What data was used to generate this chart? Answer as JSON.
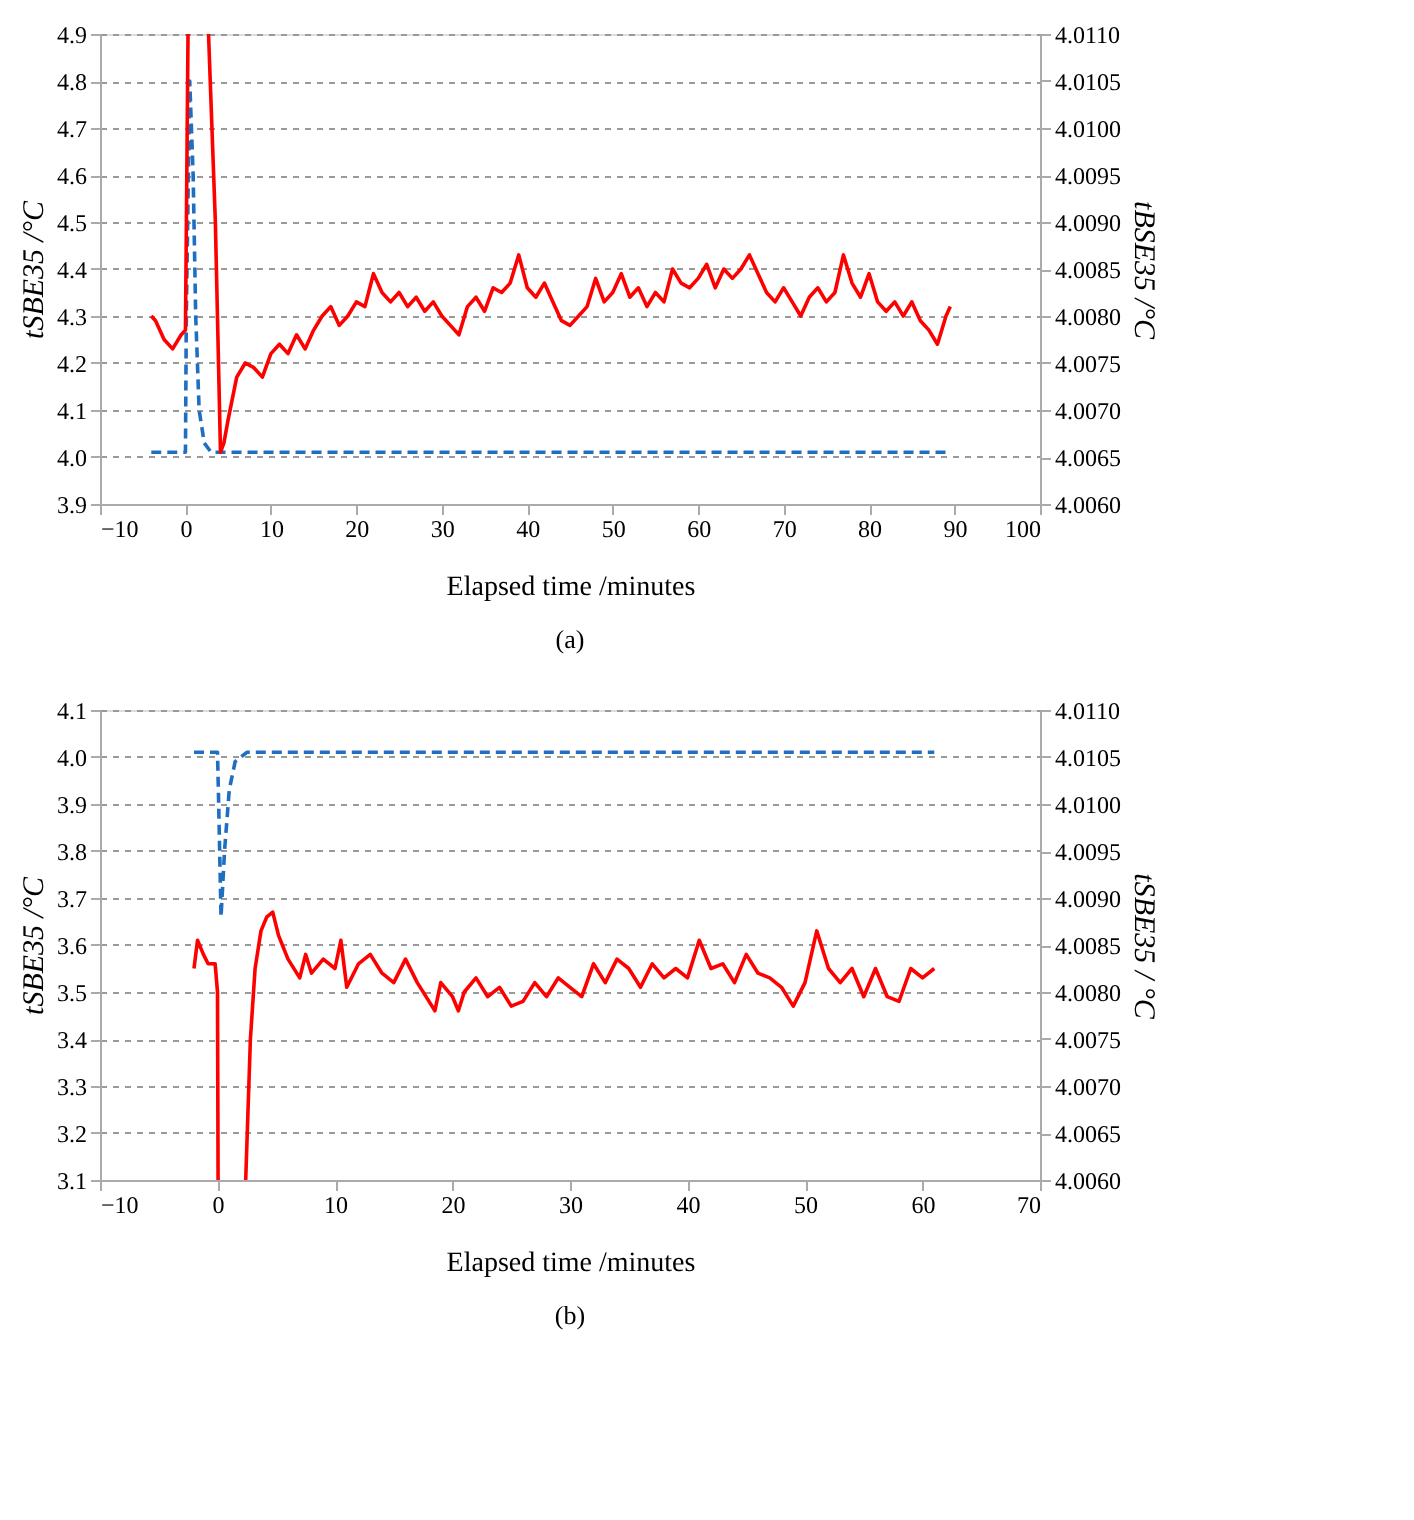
{
  "chart_data": [
    {
      "type": "line",
      "title": "(a)",
      "xlabel": "Elapsed time /minutes",
      "ylabel": "tSBE35 /°C",
      "y2label": "tBSE35 /°C",
      "grid": "y",
      "xlim": [
        -10,
        100
      ],
      "xticks": [
        -10,
        0,
        10,
        20,
        30,
        40,
        50,
        60,
        70,
        80,
        90,
        100
      ],
      "ylim": [
        3.9,
        4.9
      ],
      "yticks": [
        {
          "value": 3.9,
          "label": "3.9"
        },
        {
          "value": 4.0,
          "label": "4.0"
        },
        {
          "value": 4.1,
          "label": "4.1"
        },
        {
          "value": 4.2,
          "label": "4.2"
        },
        {
          "value": 4.3,
          "label": "4.3"
        },
        {
          "value": 4.4,
          "label": "4.4"
        },
        {
          "value": 4.5,
          "label": "4.5"
        },
        {
          "value": 4.6,
          "label": "4.6"
        },
        {
          "value": 4.7,
          "label": "4.7"
        },
        {
          "value": 4.8,
          "label": "4.8"
        },
        {
          "value": 4.9,
          "label": "4.9"
        }
      ],
      "y2lim": [
        4.006,
        4.011
      ],
      "y2ticks": [
        {
          "value": 4.006,
          "label": "4.0060"
        },
        {
          "value": 4.0065,
          "label": "4.0065"
        },
        {
          "value": 4.007,
          "label": "4.0070"
        },
        {
          "value": 4.0075,
          "label": "4.0075"
        },
        {
          "value": 4.008,
          "label": "4.0080"
        },
        {
          "value": 4.0085,
          "label": "4.0085"
        },
        {
          "value": 4.009,
          "label": "4.0090"
        },
        {
          "value": 4.0095,
          "label": "4.0095"
        },
        {
          "value": 4.01,
          "label": "4.0100"
        },
        {
          "value": 4.0105,
          "label": "4.0105"
        },
        {
          "value": 4.011,
          "label": "4.0110"
        }
      ],
      "series": [
        {
          "color": "#1f6fc0",
          "line_style": "dashed",
          "x": [
            -4,
            0,
            0.1,
            0.5,
            0.9,
            1.2,
            1.6,
            2.2,
            3,
            89.5
          ],
          "values": [
            4.01,
            4.01,
            4.3,
            4.8,
            4.6,
            4.3,
            4.1,
            4.03,
            4.01,
            4.01
          ]
        },
        {
          "color": "#ff0000",
          "line_style": "solid",
          "axis": "y2",
          "x": [
            -4,
            -3.5,
            -2.5,
            -1.5,
            -0.5,
            0,
            0.3,
            1.5,
            2.7,
            3.5,
            4.1,
            4.5,
            5,
            6,
            7,
            8,
            9,
            10,
            11,
            12,
            13,
            14,
            15,
            16,
            17,
            18,
            19,
            20,
            21,
            22,
            23,
            24,
            25,
            26,
            27,
            28,
            29,
            30,
            31,
            32,
            33,
            34,
            35,
            36,
            37,
            38,
            39,
            40,
            41,
            42,
            43,
            44,
            45,
            46,
            47,
            48,
            49,
            50,
            51,
            52,
            53,
            54,
            55,
            56,
            57,
            58,
            59,
            60,
            61,
            62,
            63,
            64,
            65,
            66,
            67,
            68,
            69,
            70,
            71,
            72,
            73,
            74,
            75,
            76,
            77,
            78,
            79,
            80,
            81,
            82,
            83,
            84,
            85,
            86,
            87,
            88,
            89,
            89.5
          ],
          "values": [
            4.008,
            4.00795,
            4.00775,
            4.00765,
            4.0078,
            4.00785,
            4.011,
            null,
            4.011,
            4.009,
            4.00655,
            4.00665,
            4.0069,
            4.00735,
            4.0075,
            4.00745,
            4.00735,
            4.0076,
            4.0077,
            4.0076,
            4.0078,
            4.00765,
            4.00785,
            4.008,
            4.0081,
            4.0079,
            4.008,
            4.00815,
            4.0081,
            4.00845,
            4.00825,
            4.00815,
            4.00825,
            4.0081,
            4.0082,
            4.00805,
            4.00815,
            4.008,
            4.0079,
            4.0078,
            4.0081,
            4.0082,
            4.00805,
            4.0083,
            4.00825,
            4.00835,
            4.00865,
            4.0083,
            4.0082,
            4.00835,
            4.00815,
            4.00795,
            4.0079,
            4.008,
            4.0081,
            4.0084,
            4.00815,
            4.00825,
            4.00845,
            4.0082,
            4.0083,
            4.0081,
            4.00825,
            4.00815,
            4.0085,
            4.00835,
            4.0083,
            4.0084,
            4.00855,
            4.0083,
            4.0085,
            4.0084,
            4.0085,
            4.00865,
            4.00845,
            4.00825,
            4.00815,
            4.0083,
            4.00815,
            4.008,
            4.0082,
            4.0083,
            4.00815,
            4.00825,
            4.00865,
            4.00835,
            4.0082,
            4.00845,
            4.00815,
            4.00805,
            4.00815,
            4.008,
            4.00815,
            4.00795,
            4.00785,
            4.0077,
            4.008,
            4.0081
          ]
        }
      ]
    },
    {
      "type": "line",
      "title": "(b)",
      "xlabel": "Elapsed time /minutes",
      "ylabel": "tSBE35 /°C",
      "y2label": "tSBE35 / °C",
      "grid": "y",
      "xlim": [
        -10,
        70
      ],
      "xticks": [
        -10,
        0,
        10,
        20,
        30,
        40,
        50,
        60,
        70
      ],
      "ylim": [
        3.1,
        4.1
      ],
      "yticks": [
        {
          "value": 3.1,
          "label": "3.1"
        },
        {
          "value": 3.2,
          "label": "3.2"
        },
        {
          "value": 3.3,
          "label": "3.3"
        },
        {
          "value": 3.4,
          "label": "3.4"
        },
        {
          "value": 3.5,
          "label": "3.5"
        },
        {
          "value": 3.6,
          "label": "3.6"
        },
        {
          "value": 3.7,
          "label": "3.7"
        },
        {
          "value": 3.8,
          "label": "3.8"
        },
        {
          "value": 3.9,
          "label": "3.9"
        },
        {
          "value": 4.0,
          "label": "4.0"
        },
        {
          "value": 4.1,
          "label": "4.1"
        }
      ],
      "y2lim": [
        4.006,
        4.011
      ],
      "y2ticks": [
        {
          "value": 4.006,
          "label": "4.0060"
        },
        {
          "value": 4.0065,
          "label": "4.0065"
        },
        {
          "value": 4.007,
          "label": "4.0070"
        },
        {
          "value": 4.0075,
          "label": "4.0075"
        },
        {
          "value": 4.008,
          "label": "4.0080"
        },
        {
          "value": 4.0085,
          "label": "4.0085"
        },
        {
          "value": 4.009,
          "label": "4.0090"
        },
        {
          "value": 4.0095,
          "label": "4.0095"
        },
        {
          "value": 4.01,
          "label": "4.0100"
        },
        {
          "value": 4.0105,
          "label": "4.0105"
        },
        {
          "value": 4.011,
          "label": "4.0110"
        }
      ],
      "series": [
        {
          "color": "#1f6fc0",
          "line_style": "dashed",
          "x": [
            -2,
            0,
            0.1,
            0.3,
            0.6,
            1,
            1.5,
            2.5,
            61
          ],
          "values": [
            4.01,
            4.01,
            3.9,
            3.66,
            3.8,
            3.93,
            3.99,
            4.01,
            4.01
          ]
        },
        {
          "color": "#ff0000",
          "line_style": "solid",
          "axis": "y2",
          "x": [
            -2,
            -1.7,
            -1.2,
            -0.8,
            -0.2,
            0,
            0.05,
            1.2,
            2.4,
            2.8,
            3.2,
            3.7,
            4.2,
            4.7,
            5.2,
            6,
            7,
            7.5,
            8,
            9,
            10,
            10.5,
            11,
            12,
            13,
            14,
            15,
            16,
            17,
            18,
            18.5,
            19,
            20,
            20.5,
            21,
            22,
            23,
            24,
            25,
            26,
            27,
            28,
            29,
            30,
            31,
            32,
            33,
            34,
            35,
            36,
            37,
            38,
            39,
            40,
            41,
            42,
            43,
            44,
            45,
            46,
            47,
            48,
            49,
            50,
            51,
            52,
            53,
            54,
            55,
            56,
            57,
            58,
            59,
            60,
            61
          ],
          "values": [
            4.00825,
            4.00855,
            4.0084,
            4.0083,
            4.0083,
            4.008,
            4.006,
            null,
            4.006,
            4.0075,
            4.00825,
            4.00865,
            4.0088,
            4.00885,
            4.0086,
            4.00835,
            4.00815,
            4.0084,
            4.0082,
            4.00835,
            4.00825,
            4.00855,
            4.00805,
            4.0083,
            4.0084,
            4.0082,
            4.0081,
            4.00835,
            4.0081,
            4.0079,
            4.0078,
            4.0081,
            4.00795,
            4.0078,
            4.008,
            4.00815,
            4.00795,
            4.00805,
            4.00785,
            4.0079,
            4.0081,
            4.00795,
            4.00815,
            4.00805,
            4.00795,
            4.0083,
            4.0081,
            4.00835,
            4.00825,
            4.00805,
            4.0083,
            4.00815,
            4.00825,
            4.00815,
            4.00855,
            4.00825,
            4.0083,
            4.0081,
            4.0084,
            4.0082,
            4.00815,
            4.00805,
            4.00785,
            4.0081,
            4.00865,
            4.00825,
            4.0081,
            4.00825,
            4.00795,
            4.00825,
            4.00795,
            4.0079,
            4.00825,
            4.00815,
            4.00825
          ]
        }
      ]
    }
  ]
}
